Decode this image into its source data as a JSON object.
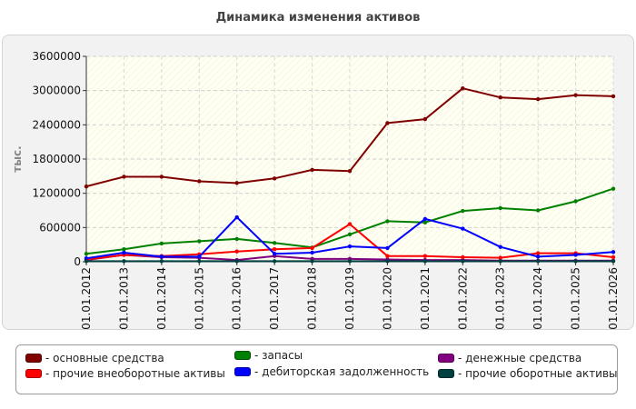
{
  "chart_data": {
    "type": "line",
    "title": "Динамика изменения активов",
    "ylabel": "тыс.",
    "xlabel": "",
    "ylim": [
      0,
      3600000
    ],
    "yticks": [
      0,
      600000,
      1200000,
      1800000,
      2400000,
      3000000,
      3600000
    ],
    "grid": true,
    "legend_position": "bottom",
    "categories": [
      "01.01.2012",
      "01.01.2013",
      "01.01.2014",
      "01.01.2015",
      "01.01.2016",
      "01.01.2017",
      "01.01.2018",
      "01.01.2019",
      "01.01.2020",
      "01.01.2021",
      "01.01.2022",
      "01.01.2023",
      "01.01.2024",
      "01.01.2025",
      "01.01.2026"
    ],
    "series": [
      {
        "name": "основные средства",
        "color": "#800000",
        "values": [
          1320000,
          1490000,
          1490000,
          1410000,
          1380000,
          1460000,
          1610000,
          1590000,
          2430000,
          2500000,
          3040000,
          2880000,
          2850000,
          2920000,
          2900000
        ]
      },
      {
        "name": "запасы",
        "color": "#008000",
        "values": [
          140000,
          220000,
          320000,
          360000,
          400000,
          330000,
          250000,
          480000,
          710000,
          690000,
          890000,
          940000,
          900000,
          1060000,
          1280000
        ]
      },
      {
        "name": "денежные средства",
        "color": "#800080",
        "values": [
          30000,
          120000,
          80000,
          70000,
          30000,
          100000,
          50000,
          50000,
          40000,
          30000,
          30000,
          20000,
          20000,
          20000,
          20000
        ]
      },
      {
        "name": "прочие внеоборотные активы",
        "color": "#ff0000",
        "values": [
          40000,
          120000,
          100000,
          130000,
          180000,
          220000,
          240000,
          660000,
          100000,
          100000,
          80000,
          70000,
          150000,
          150000,
          80000
        ]
      },
      {
        "name": "дебиторская задолженность",
        "color": "#0000ff",
        "values": [
          60000,
          160000,
          90000,
          90000,
          780000,
          140000,
          160000,
          270000,
          240000,
          750000,
          580000,
          260000,
          90000,
          120000,
          170000
        ]
      },
      {
        "name": "прочие оборотные активы",
        "color": "#004040",
        "values": [
          10000,
          10000,
          10000,
          10000,
          10000,
          10000,
          10000,
          10000,
          10000,
          10000,
          10000,
          10000,
          10000,
          10000,
          10000
        ]
      }
    ]
  }
}
